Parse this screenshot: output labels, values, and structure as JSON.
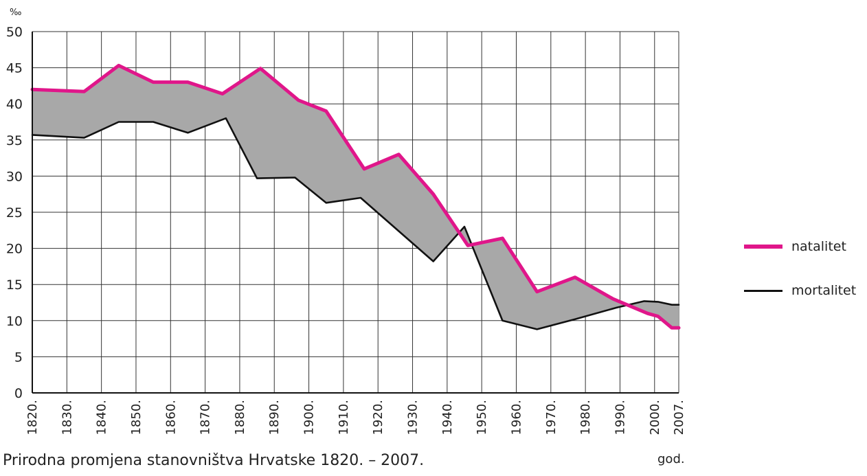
{
  "chart_data": {
    "type": "area",
    "title": "",
    "caption": "Prirodna promjena stanovništva Hrvatske 1820. – 2007.",
    "xlabel": "god.",
    "ylabel": "‰",
    "ylim": [
      0,
      50
    ],
    "xlim": [
      1820,
      2007
    ],
    "yticks": [
      0,
      5,
      10,
      15,
      20,
      25,
      30,
      35,
      40,
      45,
      50
    ],
    "xticks": [
      1820,
      1830,
      1840,
      1850,
      1860,
      1870,
      1880,
      1890,
      1900,
      1910,
      1920,
      1930,
      1940,
      1950,
      1960,
      1970,
      1980,
      1990,
      2000,
      2007
    ],
    "xtick_labels": [
      "1820.",
      "1830.",
      "1840.",
      "1850.",
      "1860.",
      "1870.",
      "1880.",
      "1890.",
      "1900.",
      "1910.",
      "1920.",
      "1930.",
      "1940.",
      "1950.",
      "1960.",
      "1970.",
      "1980.",
      "1990.",
      "2000.",
      "2007."
    ],
    "grid": true,
    "legend_position": "right",
    "fill_between": true,
    "fill_color": "#a8a8a8",
    "series": [
      {
        "name": "natalitet",
        "color": "#e0168a",
        "points": [
          [
            1820,
            42.0
          ],
          [
            1835,
            41.7
          ],
          [
            1845,
            45.3
          ],
          [
            1855,
            43.0
          ],
          [
            1865,
            43.0
          ],
          [
            1875,
            41.4
          ],
          [
            1886,
            44.9
          ],
          [
            1897,
            40.5
          ],
          [
            1905,
            39.0
          ],
          [
            1916,
            31.0
          ],
          [
            1926,
            33.0
          ],
          [
            1936,
            27.5
          ],
          [
            1946,
            20.4
          ],
          [
            1956,
            21.4
          ],
          [
            1966,
            14.0
          ],
          [
            1977,
            16.0
          ],
          [
            1988,
            13.0
          ],
          [
            1998,
            11.0
          ],
          [
            2001,
            10.6
          ],
          [
            2005,
            9.0
          ],
          [
            2007,
            9.0
          ]
        ]
      },
      {
        "name": "mortalitet",
        "color": "#111111",
        "points": [
          [
            1820,
            35.7
          ],
          [
            1835,
            35.3
          ],
          [
            1845,
            37.5
          ],
          [
            1855,
            37.5
          ],
          [
            1865,
            36.0
          ],
          [
            1876,
            38.0
          ],
          [
            1885,
            29.7
          ],
          [
            1896,
            29.8
          ],
          [
            1905,
            26.3
          ],
          [
            1915,
            27.0
          ],
          [
            1936,
            18.2
          ],
          [
            1945,
            23.0
          ],
          [
            1956,
            10.0
          ],
          [
            1966,
            8.8
          ],
          [
            1977,
            10.2
          ],
          [
            1989,
            11.8
          ],
          [
            1997,
            12.7
          ],
          [
            2001,
            12.6
          ],
          [
            2005,
            12.2
          ],
          [
            2007,
            12.2
          ]
        ]
      }
    ]
  }
}
